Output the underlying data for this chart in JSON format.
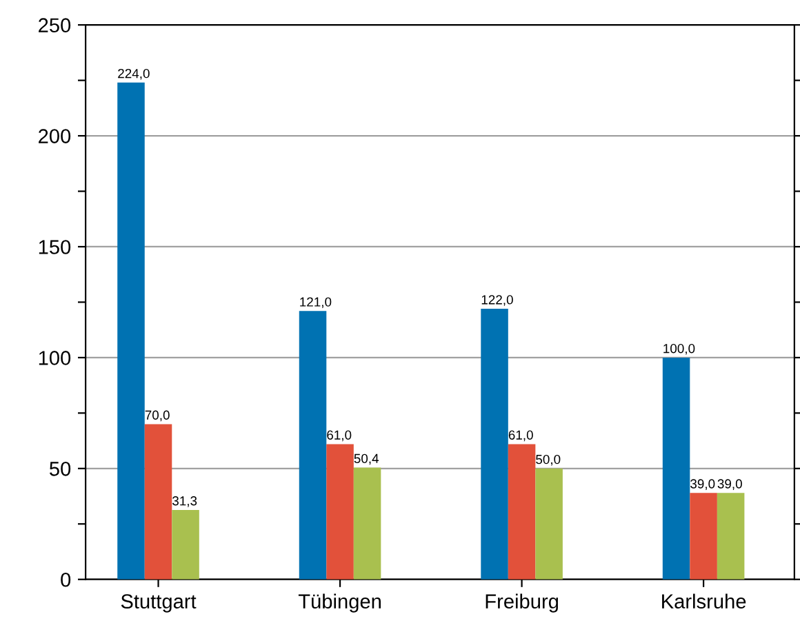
{
  "chart_data": {
    "type": "bar",
    "categories": [
      "Stuttgart",
      "Tübingen",
      "Freiburg",
      "Karlsruhe"
    ],
    "series": [
      {
        "color": "#0072b2",
        "values": [
          224.0,
          121.0,
          122.0,
          100.0
        ],
        "value_labels": [
          "224,0",
          "121,0",
          "122,0",
          "100,0"
        ]
      },
      {
        "color": "#e2513a",
        "values": [
          70.0,
          61.0,
          61.0,
          39.0
        ],
        "value_labels": [
          "70,0",
          "61,0",
          "61,0",
          "39,0"
        ]
      },
      {
        "color": "#a9c04f",
        "values": [
          31.3,
          50.4,
          50.0,
          39.0
        ],
        "value_labels": [
          "31,3",
          "50,4",
          "50,0",
          "39,0"
        ]
      }
    ],
    "ylim": [
      0,
      250
    ],
    "yticks": [
      0,
      {
        "value": 25,
        "label": null
      },
      50,
      {
        "value": 75,
        "label": null
      },
      100,
      {
        "value": 125,
        "label": null
      },
      150,
      {
        "value": 175,
        "label": null
      },
      200,
      {
        "value": 225,
        "label": null
      },
      250
    ],
    "grid": "y",
    "legend": false
  }
}
